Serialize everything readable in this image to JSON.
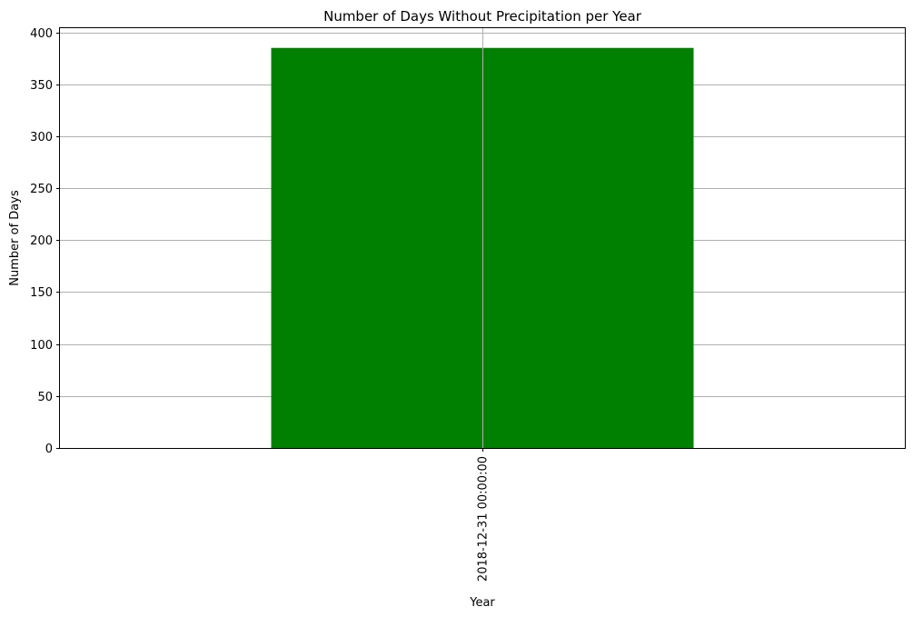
{
  "chart_data": {
    "type": "bar",
    "title": "Number of Days Without Precipitation per Year",
    "xlabel": "Year",
    "ylabel": "Number of Days",
    "categories": [
      "2018-12-31 00:00:00"
    ],
    "values": [
      385
    ],
    "ylim": [
      0,
      404
    ],
    "yticks": [
      0,
      50,
      100,
      150,
      200,
      250,
      300,
      350,
      400
    ],
    "grid": true,
    "legend": "none",
    "bar_color": "#008000",
    "grid_color": "#b0b0b0",
    "x_tick_rotation": "vertical"
  }
}
